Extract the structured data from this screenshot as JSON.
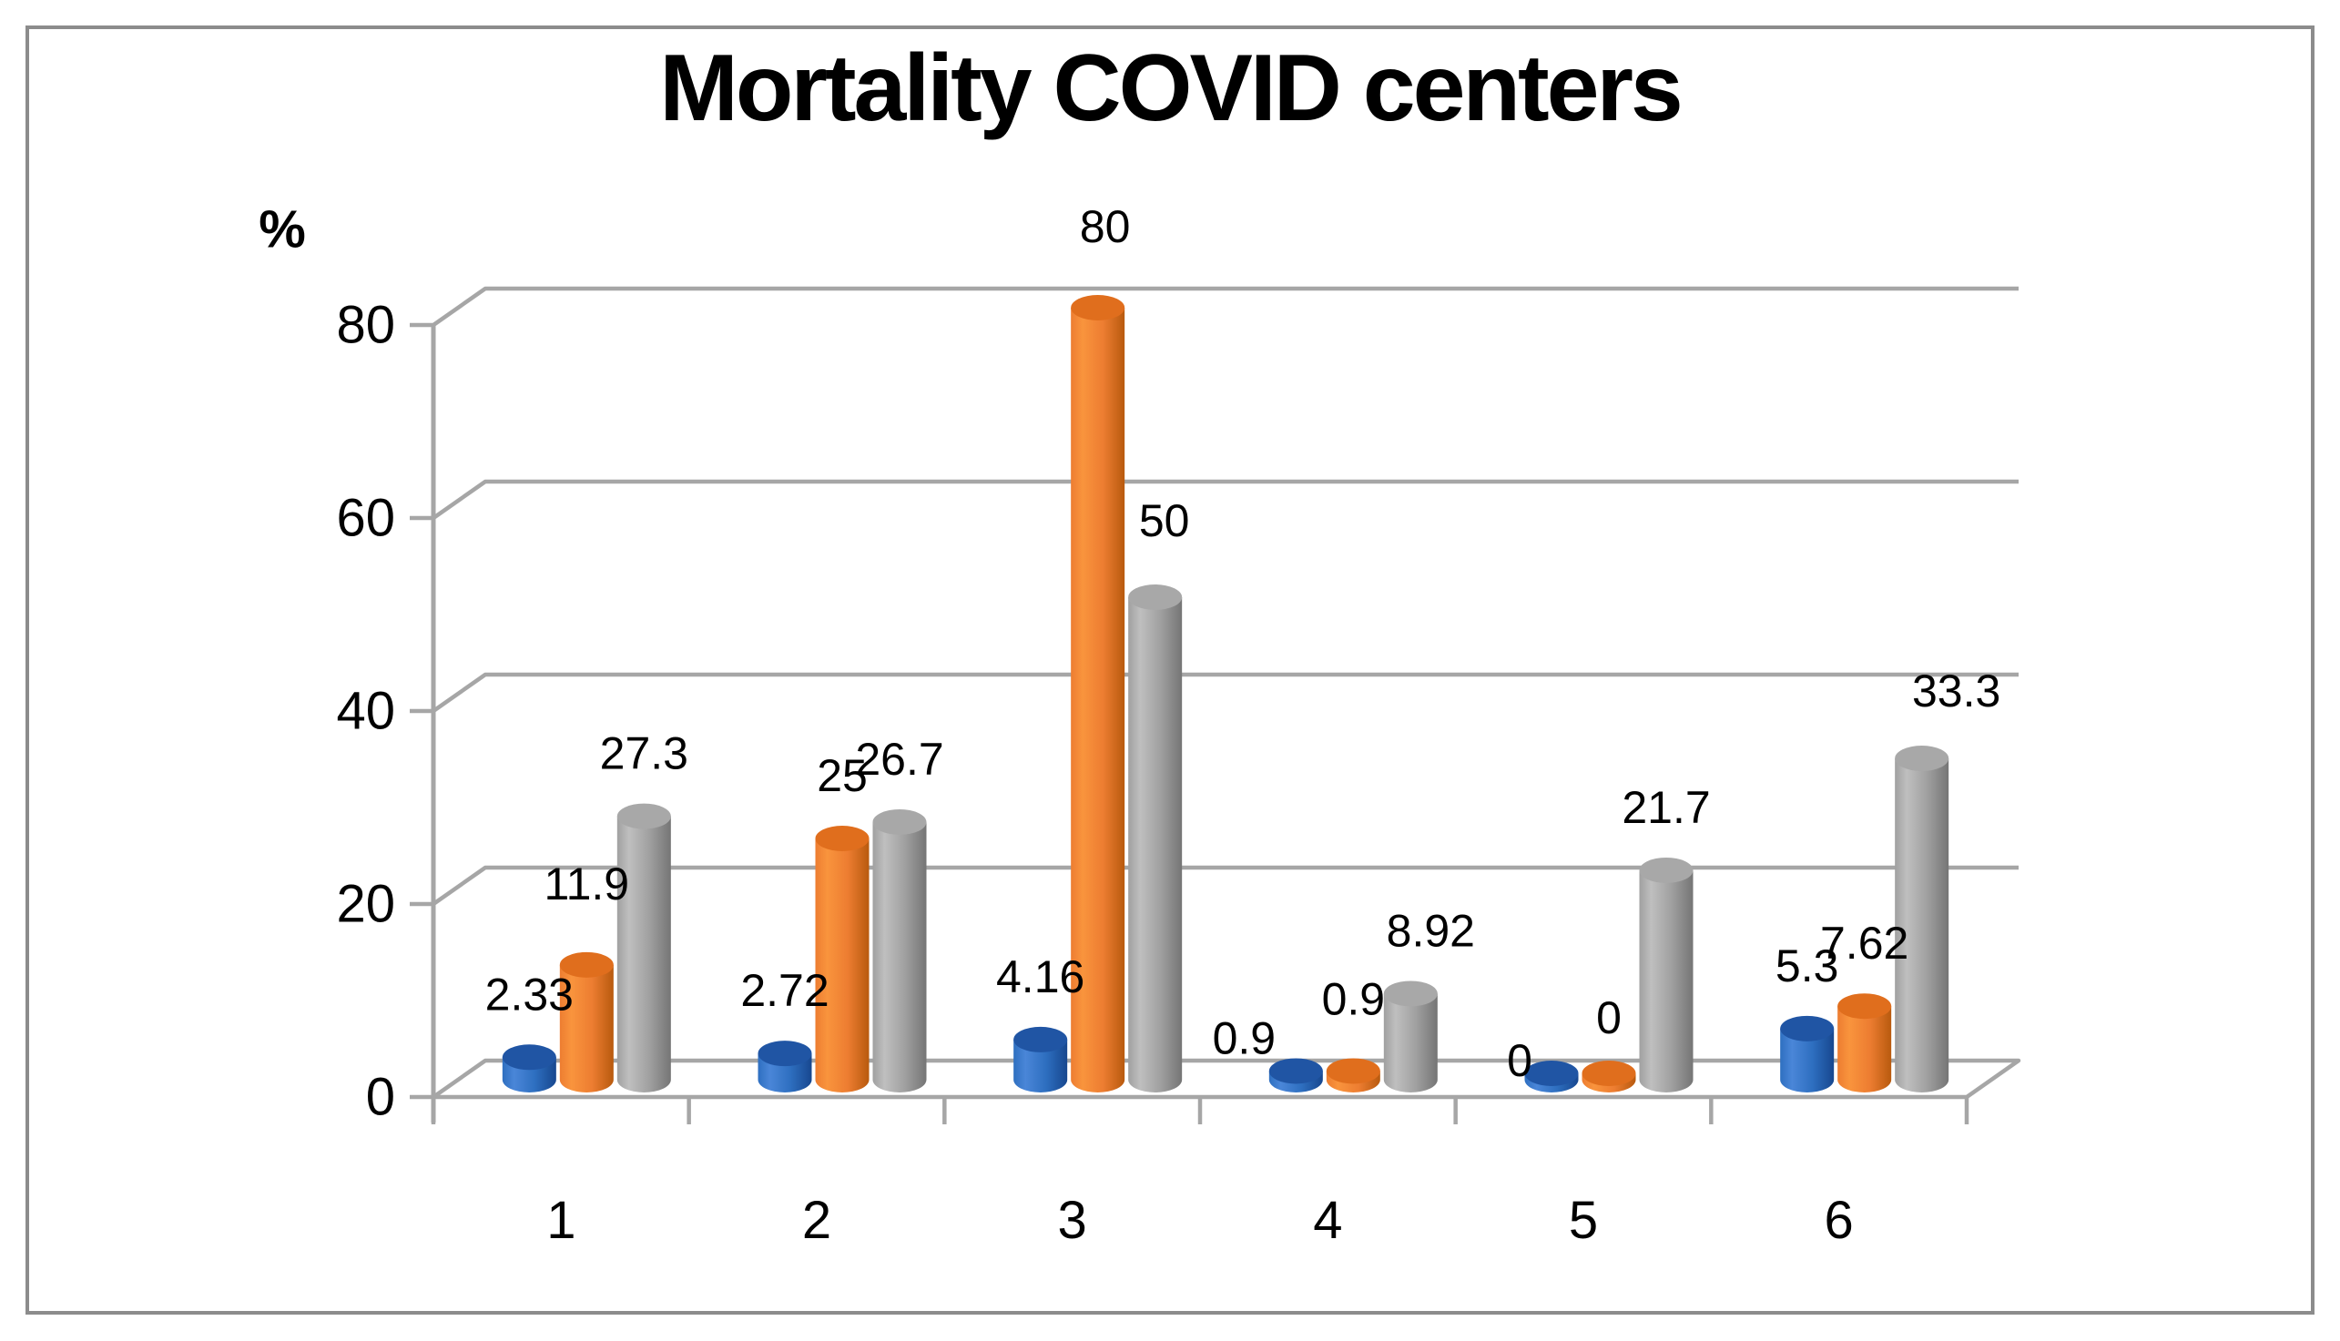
{
  "page": {
    "background": "#ffffff",
    "border_color": "#8c8c8c"
  },
  "chart_data": {
    "type": "bar",
    "style": "3d-cylinder-clustered",
    "title": "Mortality COVID centers",
    "ylabel": "%",
    "xlabel": "",
    "categories": [
      "1",
      "2",
      "3",
      "4",
      "5",
      "6"
    ],
    "series": [
      {
        "name": "series-1-blue",
        "values": [
          2.33,
          2.72,
          4.16,
          0.9,
          0,
          5.3
        ],
        "labels": [
          "2.33",
          "2.72",
          "4.16",
          "0.9",
          "0",
          "5.3"
        ],
        "colors": {
          "light": "#4a86d8",
          "mid": "#2e6fc0",
          "dark": "#17478f",
          "top": "#2055a4"
        }
      },
      {
        "name": "series-2-orange",
        "values": [
          11.9,
          25,
          80,
          0.9,
          0,
          7.62
        ],
        "labels": [
          "11.9",
          "25",
          "80",
          "0.9",
          "0",
          "7.62"
        ],
        "colors": {
          "light": "#f9943d",
          "mid": "#ed7d31",
          "dark": "#b85a0e",
          "top": "#e06e1d"
        }
      },
      {
        "name": "series-3-gray",
        "values": [
          27.3,
          26.7,
          50,
          8.92,
          21.7,
          33.3
        ],
        "labels": [
          "27.3",
          "26.7",
          "50",
          "8.92",
          "21.7",
          "33.3"
        ],
        "colors": {
          "light": "#bfbfbf",
          "mid": "#a0a0a0",
          "dark": "#757575",
          "top": "#a8a8a8"
        }
      }
    ],
    "y_ticks": [
      {
        "value": 0,
        "label": "0"
      },
      {
        "value": 20,
        "label": "20"
      },
      {
        "value": 40,
        "label": "40"
      },
      {
        "value": 60,
        "label": "60"
      },
      {
        "value": 80,
        "label": "80"
      }
    ],
    "ylim": [
      0,
      80
    ],
    "grid": true,
    "legend": "none",
    "grid_color": "#a6a6a6",
    "label_color": "#000000",
    "label_offsets": {
      "1-0": [
        0,
        -20
      ],
      "1-2": [
        8,
        -20
      ],
      "2-2": [
        10,
        -15
      ],
      "0-3": [
        -57,
        33
      ],
      "1-3": [
        0,
        -10
      ],
      "2-3": [
        22,
        0
      ],
      "0-4": [
        -35,
        55
      ],
      "1-4": [
        0,
        8
      ],
      "2-5": [
        38,
        -5
      ]
    }
  }
}
